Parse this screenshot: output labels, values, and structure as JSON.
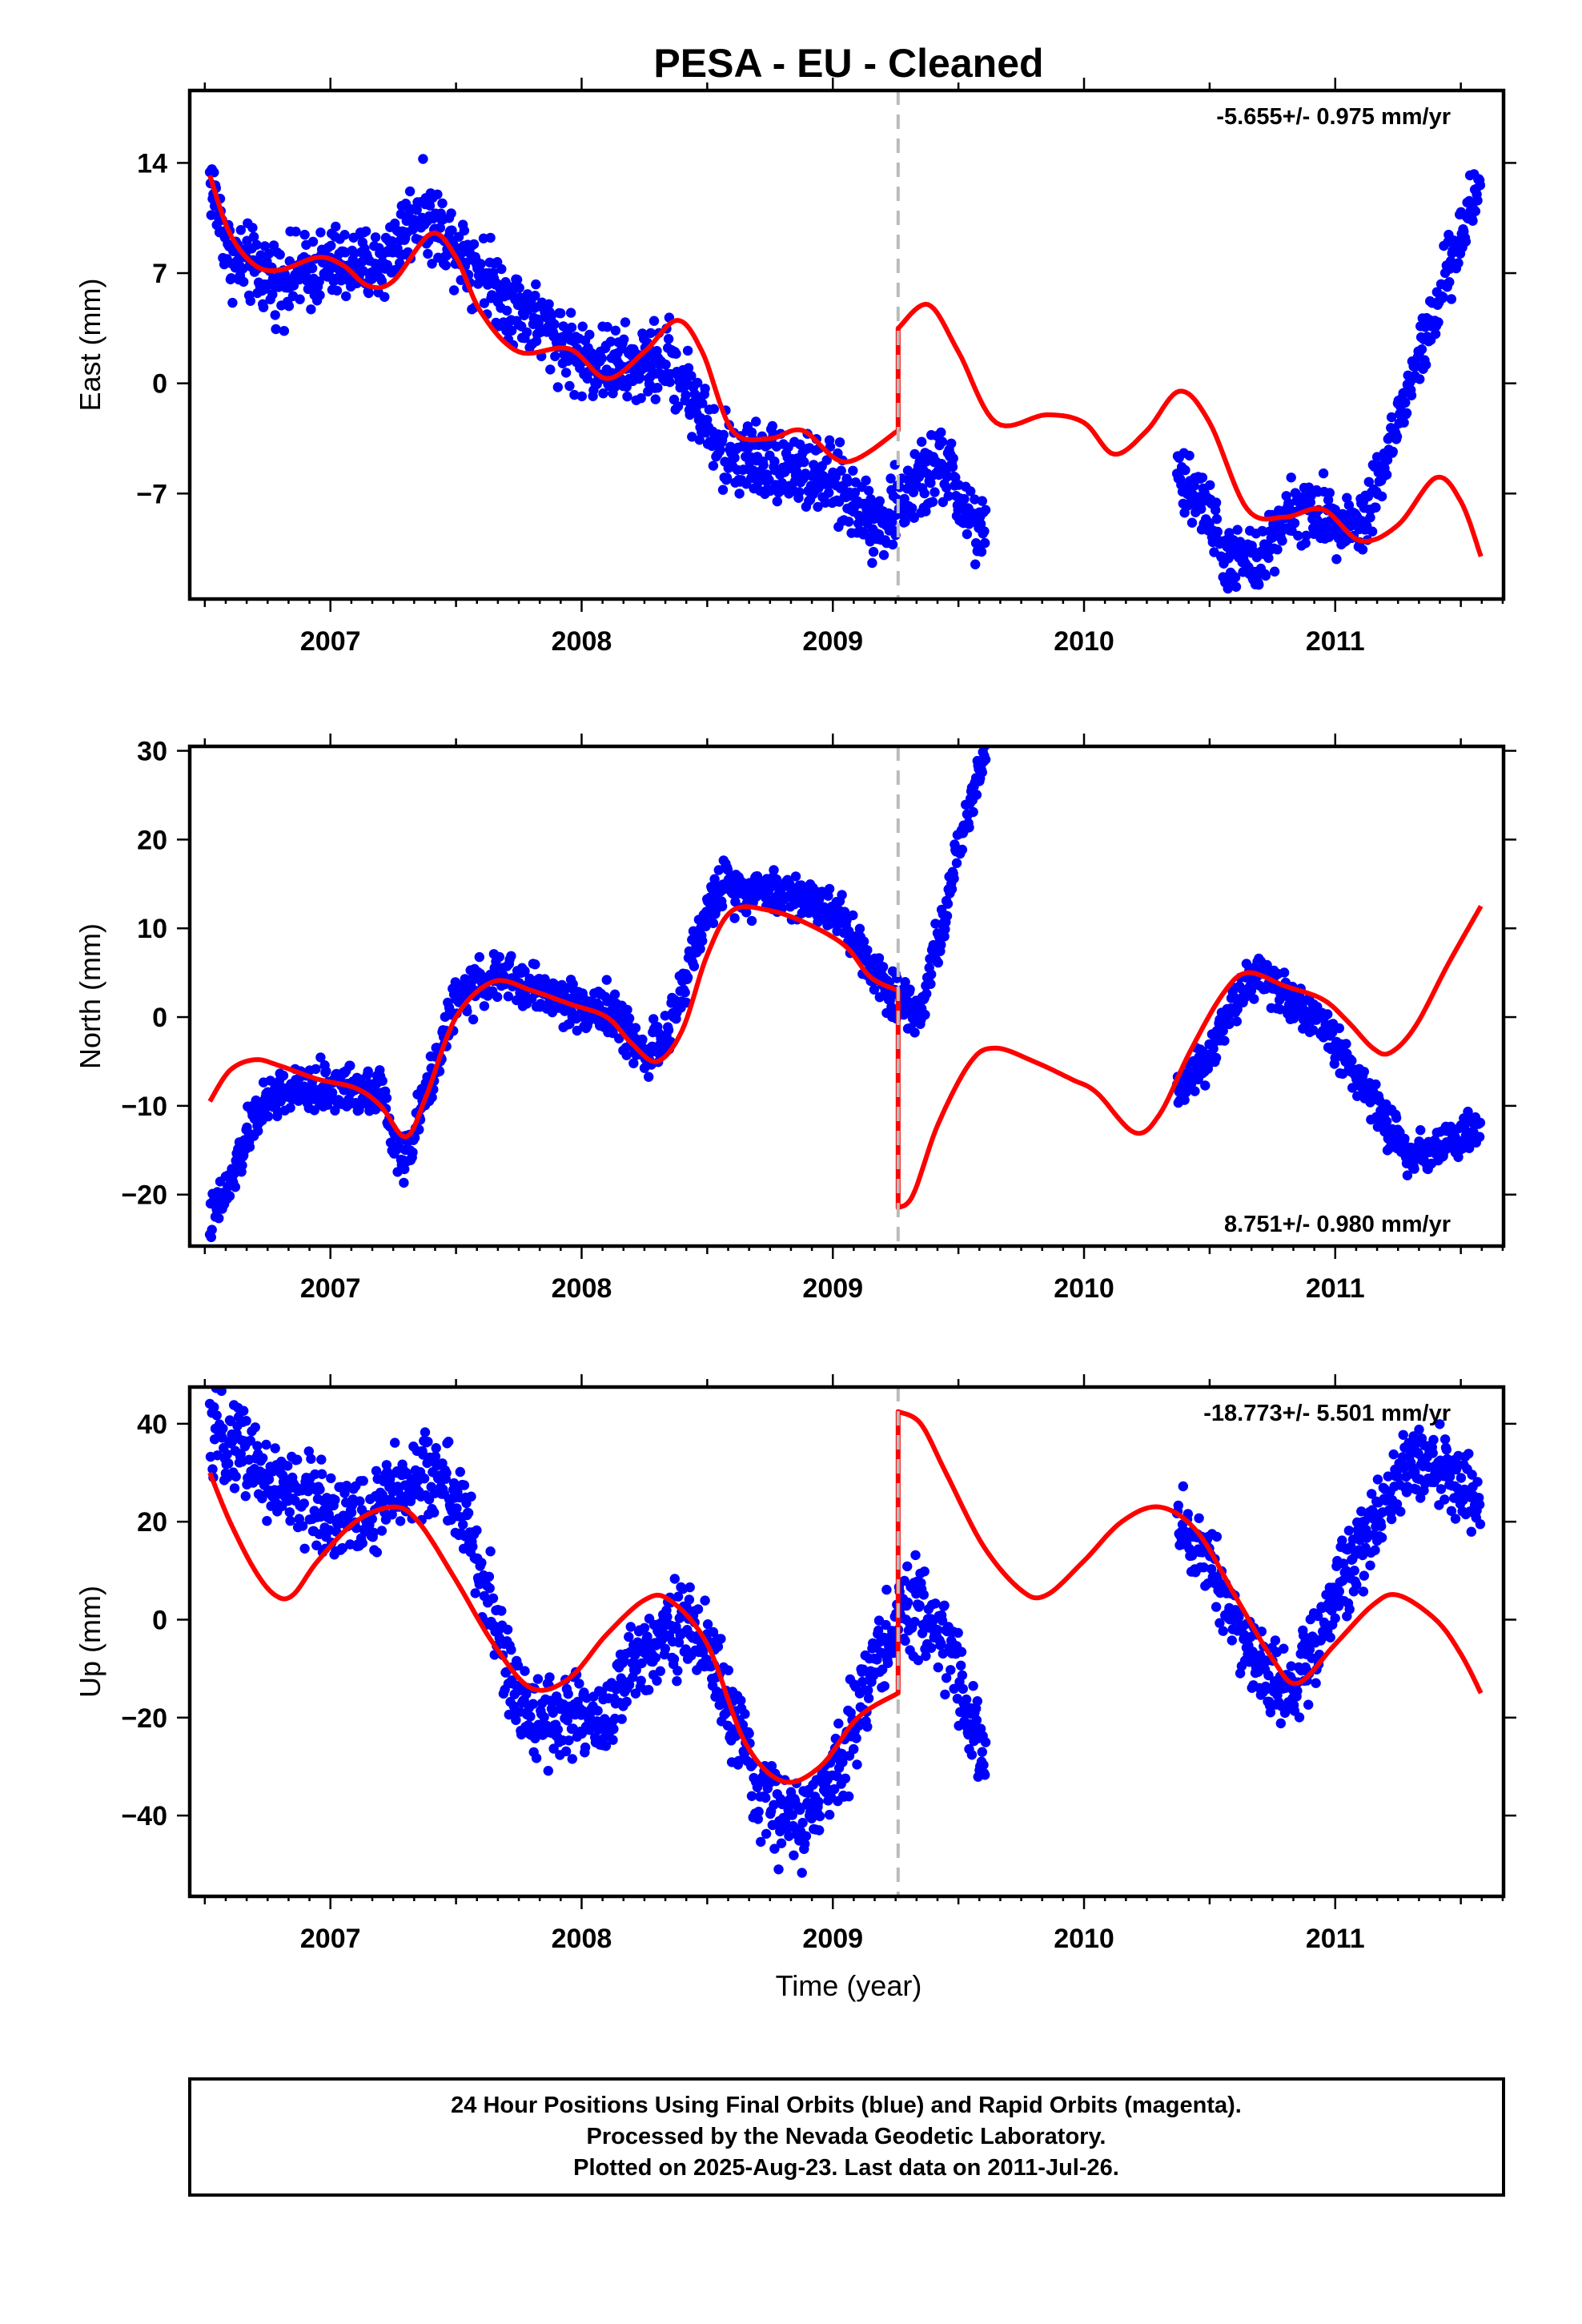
{
  "title": "PESA  - EU - Cleaned",
  "xlabel": "Time (year)",
  "footer": [
    "24 Hour Positions Using Final Orbits (blue) and Rapid Orbits (magenta).",
    "Processed by the Nevada Geodetic Laboratory.",
    "Plotted on 2025-Aug-23. Last data on 2011-Jul-26."
  ],
  "colors": {
    "points": "#0000ff",
    "model": "#ff0000",
    "event_line": "#bbbbbb",
    "axes": "#000000"
  },
  "chart_data": [
    {
      "type": "scatter",
      "component": "East",
      "ylabel": "East (mm)",
      "rate_text": "-5.655+/- 0.975 mm/yr",
      "xlim": [
        2006.44,
        2011.67
      ],
      "ylim": [
        -13.7,
        18.6
      ],
      "x_ticks": [
        2007,
        2008,
        2009,
        2010,
        2011
      ],
      "y_ticks": [
        -7,
        0,
        7,
        14
      ],
      "event_line_x": 2009.26,
      "data_segments": [
        {
          "x_range": [
            2006.52,
            2009.61
          ],
          "trend": [
            [
              2006.52,
              13.0
            ],
            [
              2006.6,
              8.0
            ],
            [
              2006.8,
              6.5
            ],
            [
              2007.0,
              7.5
            ],
            [
              2007.2,
              7.5
            ],
            [
              2007.35,
              11.0
            ],
            [
              2007.5,
              9.0
            ],
            [
              2007.7,
              5.5
            ],
            [
              2007.9,
              3.0
            ],
            [
              2008.0,
              1.5
            ],
            [
              2008.2,
              1.0
            ],
            [
              2008.35,
              1.5
            ],
            [
              2008.45,
              -1.0
            ],
            [
              2008.55,
              -4.5
            ],
            [
              2008.8,
              -5.0
            ],
            [
              2009.0,
              -6.5
            ],
            [
              2009.2,
              -9.0
            ],
            [
              2009.3,
              -7.0
            ],
            [
              2009.45,
              -5.0
            ],
            [
              2009.52,
              -8.0
            ],
            [
              2009.61,
              -10.0
            ]
          ],
          "noise": 1.2
        },
        {
          "x_range": [
            2010.37,
            2011.58
          ],
          "trend": [
            [
              2010.37,
              -6.0
            ],
            [
              2010.5,
              -8.0
            ],
            [
              2010.55,
              -11.0
            ],
            [
              2010.7,
              -11.5
            ],
            [
              2010.8,
              -8.0
            ],
            [
              2011.0,
              -8.5
            ],
            [
              2011.1,
              -9.0
            ],
            [
              2011.2,
              -5.0
            ],
            [
              2011.3,
              0.0
            ],
            [
              2011.45,
              7.0
            ],
            [
              2011.58,
              13.0
            ]
          ],
          "noise": 1.0
        }
      ],
      "model_segments": [
        [
          [
            2006.52,
            13.2
          ],
          [
            2006.6,
            9.5
          ],
          [
            2006.7,
            7.5
          ],
          [
            2006.8,
            7.2
          ],
          [
            2006.95,
            8.0
          ],
          [
            2007.05,
            7.5
          ],
          [
            2007.15,
            6.2
          ],
          [
            2007.25,
            6.5
          ],
          [
            2007.4,
            9.5
          ],
          [
            2007.5,
            8.0
          ],
          [
            2007.6,
            4.5
          ],
          [
            2007.75,
            2.0
          ],
          [
            2007.95,
            2.2
          ],
          [
            2008.1,
            0.3
          ],
          [
            2008.25,
            2.0
          ],
          [
            2008.38,
            4.0
          ],
          [
            2008.48,
            2.0
          ],
          [
            2008.6,
            -3.0
          ],
          [
            2008.75,
            -3.5
          ],
          [
            2008.88,
            -3.0
          ],
          [
            2009.05,
            -5.0
          ],
          [
            2009.26,
            -3.0
          ]
        ],
        [
          [
            2009.26,
            3.5
          ],
          [
            2009.38,
            5.0
          ],
          [
            2009.5,
            2.0
          ],
          [
            2009.65,
            -2.5
          ],
          [
            2009.85,
            -2.0
          ],
          [
            2010.0,
            -2.5
          ],
          [
            2010.12,
            -4.5
          ],
          [
            2010.25,
            -3.0
          ],
          [
            2010.38,
            -0.5
          ],
          [
            2010.5,
            -2.5
          ],
          [
            2010.65,
            -8.0
          ],
          [
            2010.8,
            -8.5
          ],
          [
            2010.95,
            -8.0
          ],
          [
            2011.1,
            -10.0
          ],
          [
            2011.25,
            -9.0
          ],
          [
            2011.4,
            -6.0
          ],
          [
            2011.5,
            -7.5
          ],
          [
            2011.58,
            -11.0
          ]
        ]
      ]
    },
    {
      "type": "scatter",
      "component": "North",
      "ylabel": "North (mm)",
      "rate_text": "8.751+/- 0.980 mm/yr",
      "xlim": [
        2006.44,
        2011.67
      ],
      "ylim": [
        -25.8,
        30.5
      ],
      "x_ticks": [
        2007,
        2008,
        2009,
        2010,
        2011
      ],
      "y_ticks": [
        -20,
        -10,
        0,
        10,
        20,
        30
      ],
      "event_line_x": 2009.26,
      "data_segments": [
        {
          "x_range": [
            2006.52,
            2009.61
          ],
          "trend": [
            [
              2006.52,
              -23.0
            ],
            [
              2006.6,
              -19.0
            ],
            [
              2006.7,
              -11.0
            ],
            [
              2006.8,
              -8.5
            ],
            [
              2007.0,
              -8.0
            ],
            [
              2007.2,
              -8.0
            ],
            [
              2007.25,
              -14.0
            ],
            [
              2007.3,
              -16.0
            ],
            [
              2007.4,
              -7.0
            ],
            [
              2007.5,
              2.0
            ],
            [
              2007.65,
              4.5
            ],
            [
              2007.8,
              3.5
            ],
            [
              2007.95,
              1.5
            ],
            [
              2008.1,
              1.0
            ],
            [
              2008.25,
              -4.0
            ],
            [
              2008.35,
              -2.0
            ],
            [
              2008.45,
              8.0
            ],
            [
              2008.55,
              15.0
            ],
            [
              2008.8,
              14.0
            ],
            [
              2009.0,
              12.5
            ],
            [
              2009.15,
              6.0
            ],
            [
              2009.26,
              2.0
            ],
            [
              2009.35,
              1.0
            ],
            [
              2009.45,
              12.0
            ],
            [
              2009.55,
              25.0
            ],
            [
              2009.61,
              30.0
            ]
          ],
          "noise": 1.3
        },
        {
          "x_range": [
            2010.37,
            2011.58
          ],
          "trend": [
            [
              2010.37,
              -8.0
            ],
            [
              2010.5,
              -4.0
            ],
            [
              2010.6,
              2.0
            ],
            [
              2010.7,
              5.0
            ],
            [
              2010.85,
              1.5
            ],
            [
              2010.95,
              -1.0
            ],
            [
              2011.1,
              -7.0
            ],
            [
              2011.2,
              -12.0
            ],
            [
              2011.3,
              -15.5
            ],
            [
              2011.45,
              -14.0
            ],
            [
              2011.58,
              -12.5
            ]
          ],
          "noise": 1.2
        }
      ],
      "model_segments": [
        [
          [
            2006.52,
            -9.5
          ],
          [
            2006.6,
            -6.0
          ],
          [
            2006.7,
            -4.8
          ],
          [
            2006.8,
            -5.5
          ],
          [
            2006.95,
            -7.0
          ],
          [
            2007.1,
            -8.0
          ],
          [
            2007.2,
            -10.0
          ],
          [
            2007.3,
            -13.5
          ],
          [
            2007.38,
            -9.0
          ],
          [
            2007.5,
            0.0
          ],
          [
            2007.65,
            4.0
          ],
          [
            2007.8,
            3.0
          ],
          [
            2007.95,
            1.5
          ],
          [
            2008.1,
            0.0
          ],
          [
            2008.2,
            -3.0
          ],
          [
            2008.3,
            -5.0
          ],
          [
            2008.4,
            -1.5
          ],
          [
            2008.5,
            7.0
          ],
          [
            2008.6,
            12.0
          ],
          [
            2008.75,
            12.0
          ],
          [
            2008.9,
            10.5
          ],
          [
            2009.05,
            8.0
          ],
          [
            2009.15,
            4.5
          ],
          [
            2009.26,
            3.0
          ]
        ],
        [
          [
            2009.26,
            -21.5
          ],
          [
            2009.32,
            -20.0
          ],
          [
            2009.42,
            -12.0
          ],
          [
            2009.55,
            -5.0
          ],
          [
            2009.65,
            -3.5
          ],
          [
            2009.8,
            -5.0
          ],
          [
            2009.95,
            -7.0
          ],
          [
            2010.05,
            -8.5
          ],
          [
            2010.2,
            -13.0
          ],
          [
            2010.3,
            -11.0
          ],
          [
            2010.42,
            -4.0
          ],
          [
            2010.55,
            2.5
          ],
          [
            2010.65,
            5.0
          ],
          [
            2010.8,
            3.5
          ],
          [
            2010.95,
            2.0
          ],
          [
            2011.05,
            -0.5
          ],
          [
            2011.15,
            -3.5
          ],
          [
            2011.22,
            -4.0
          ],
          [
            2011.32,
            -1.0
          ],
          [
            2011.45,
            6.0
          ],
          [
            2011.58,
            12.5
          ]
        ]
      ]
    },
    {
      "type": "scatter",
      "component": "Up",
      "ylabel": "Up (mm)",
      "rate_text": "-18.773+/- 5.501 mm/yr",
      "xlim": [
        2006.44,
        2011.67
      ],
      "ylim": [
        -56.5,
        47.5
      ],
      "x_ticks": [
        2007,
        2008,
        2009,
        2010,
        2011
      ],
      "y_ticks": [
        -40,
        -20,
        0,
        20,
        40
      ],
      "event_line_x": 2009.26,
      "data_segments": [
        {
          "x_range": [
            2006.52,
            2009.61
          ],
          "trend": [
            [
              2006.52,
              38.0
            ],
            [
              2006.65,
              36.0
            ],
            [
              2006.75,
              28.0
            ],
            [
              2007.0,
              22.0
            ],
            [
              2007.15,
              20.0
            ],
            [
              2007.3,
              28.0
            ],
            [
              2007.45,
              30.0
            ],
            [
              2007.55,
              18.0
            ],
            [
              2007.65,
              0.0
            ],
            [
              2007.75,
              -18.0
            ],
            [
              2007.9,
              -20.0
            ],
            [
              2008.1,
              -20.0
            ],
            [
              2008.2,
              -10.0
            ],
            [
              2008.35,
              0.0
            ],
            [
              2008.5,
              -5.0
            ],
            [
              2008.6,
              -20.0
            ],
            [
              2008.7,
              -35.0
            ],
            [
              2008.85,
              -42.0
            ],
            [
              2008.95,
              -38.0
            ],
            [
              2009.05,
              -25.0
            ],
            [
              2009.2,
              -5.0
            ],
            [
              2009.3,
              2.0
            ],
            [
              2009.4,
              0.0
            ],
            [
              2009.5,
              -10.0
            ],
            [
              2009.6,
              -30.0
            ]
          ],
          "noise": 4.5
        },
        {
          "x_range": [
            2010.37,
            2011.58
          ],
          "trend": [
            [
              2010.37,
              20.0
            ],
            [
              2010.5,
              12.0
            ],
            [
              2010.6,
              0.0
            ],
            [
              2010.7,
              -10.0
            ],
            [
              2010.8,
              -15.0
            ],
            [
              2010.9,
              -8.0
            ],
            [
              2011.0,
              5.0
            ],
            [
              2011.1,
              15.0
            ],
            [
              2011.2,
              25.0
            ],
            [
              2011.3,
              33.0
            ],
            [
              2011.45,
              30.0
            ],
            [
              2011.58,
              22.0
            ]
          ],
          "noise": 4.0
        }
      ],
      "model_segments": [
        [
          [
            2006.52,
            30.0
          ],
          [
            2006.6,
            20.0
          ],
          [
            2006.7,
            10.0
          ],
          [
            2006.78,
            5.0
          ],
          [
            2006.85,
            5.0
          ],
          [
            2006.95,
            12.0
          ],
          [
            2007.1,
            20.0
          ],
          [
            2007.25,
            23.0
          ],
          [
            2007.35,
            20.0
          ],
          [
            2007.5,
            8.0
          ],
          [
            2007.65,
            -5.0
          ],
          [
            2007.8,
            -14.0
          ],
          [
            2007.95,
            -12.0
          ],
          [
            2008.1,
            -3.0
          ],
          [
            2008.25,
            4.0
          ],
          [
            2008.35,
            4.0
          ],
          [
            2008.5,
            -5.0
          ],
          [
            2008.65,
            -25.0
          ],
          [
            2008.8,
            -33.0
          ],
          [
            2008.95,
            -30.0
          ],
          [
            2009.1,
            -20.0
          ],
          [
            2009.26,
            -15.0
          ]
        ],
        [
          [
            2009.26,
            42.5
          ],
          [
            2009.35,
            40.0
          ],
          [
            2009.45,
            30.0
          ],
          [
            2009.6,
            15.0
          ],
          [
            2009.75,
            6.0
          ],
          [
            2009.85,
            5.0
          ],
          [
            2010.0,
            12.0
          ],
          [
            2010.15,
            20.0
          ],
          [
            2010.3,
            23.0
          ],
          [
            2010.45,
            18.0
          ],
          [
            2010.6,
            5.0
          ],
          [
            2010.75,
            -8.0
          ],
          [
            2010.85,
            -13.0
          ],
          [
            2011.0,
            -5.0
          ],
          [
            2011.15,
            3.0
          ],
          [
            2011.25,
            5.0
          ],
          [
            2011.4,
            0.0
          ],
          [
            2011.5,
            -7.0
          ],
          [
            2011.58,
            -15.0
          ]
        ]
      ]
    }
  ]
}
